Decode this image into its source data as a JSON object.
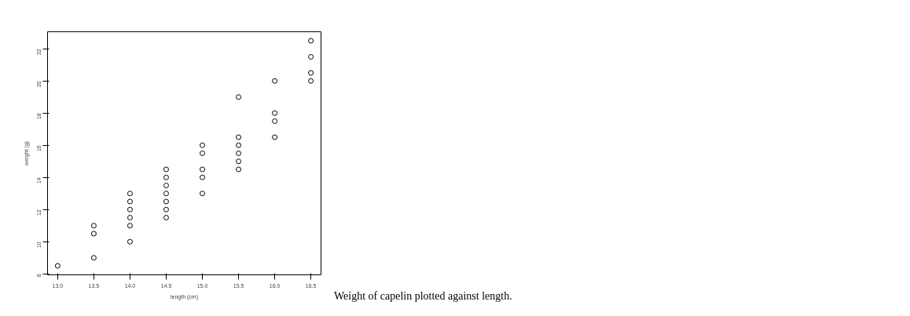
{
  "chart_data": {
    "type": "scatter",
    "xlabel": "length (cm)",
    "ylabel": "weight (g)",
    "x": [
      13.0,
      13.5,
      13.5,
      13.5,
      14.0,
      14.0,
      14.0,
      14.0,
      14.0,
      14.0,
      14.5,
      14.5,
      14.5,
      14.5,
      14.5,
      14.5,
      14.5,
      15.0,
      15.0,
      15.0,
      15.0,
      15.0,
      15.5,
      15.5,
      15.5,
      15.5,
      15.5,
      15.5,
      16.0,
      16.0,
      16.0,
      16.0,
      16.5,
      16.5,
      16.5,
      16.5
    ],
    "values": [
      8.5,
      9,
      10.5,
      11,
      10,
      11,
      11.5,
      12,
      12.5,
      13,
      11.5,
      12,
      12.5,
      13,
      13.5,
      14,
      14.5,
      13,
      14,
      14.5,
      15.5,
      16,
      14.5,
      15,
      15.5,
      16,
      16.5,
      19,
      16.5,
      17.5,
      18,
      20,
      20,
      20.5,
      21.5,
      22.5
    ],
    "color": "#000000",
    "marker": "circle",
    "grid": false,
    "xlim": [
      12.86,
      16.64
    ],
    "ylim": [
      7.94,
      23.06
    ],
    "xticks": [
      {
        "value": 13,
        "label": "13.0"
      },
      {
        "value": 13.5,
        "label": "13.5"
      },
      {
        "value": 14,
        "label": "14.0"
      },
      {
        "value": 14.5,
        "label": "14.5"
      },
      {
        "value": 15,
        "label": "15.0"
      },
      {
        "value": 15.5,
        "label": "15.5"
      },
      {
        "value": 16,
        "label": "16.0"
      },
      {
        "value": 16.5,
        "label": "16.5"
      }
    ],
    "yticks": [
      8,
      10,
      12,
      14,
      16,
      18,
      20,
      22
    ],
    "annotations": [
      "Weight of capelin plotted against length."
    ]
  }
}
